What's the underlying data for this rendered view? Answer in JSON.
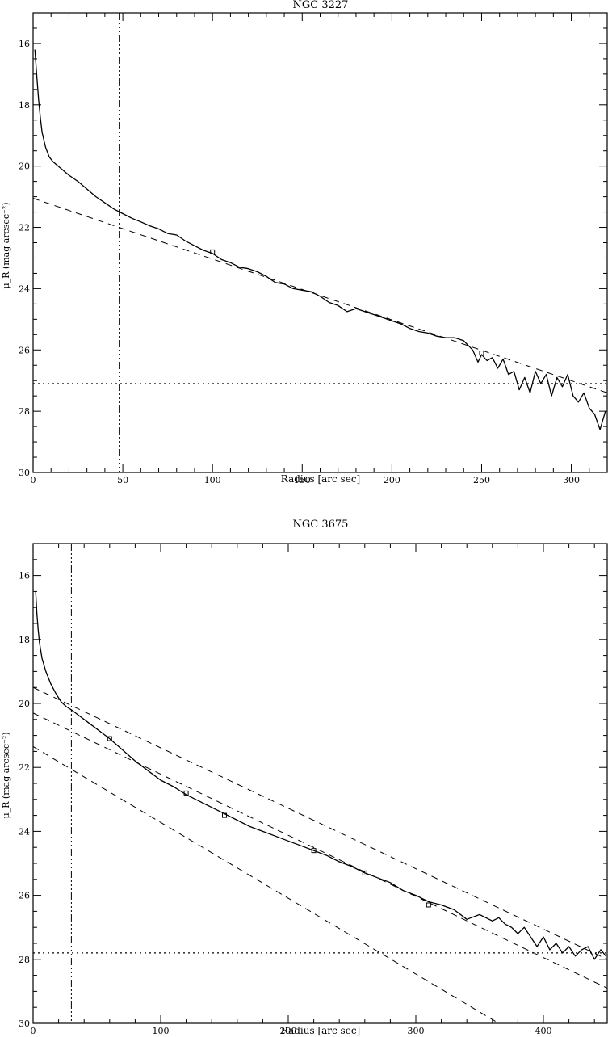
{
  "chart_data": [
    {
      "type": "line",
      "title": "NGC 3227",
      "xlabel": "Radius [arc sec]",
      "ylabel": "μ_R (mag arcsec⁻²)",
      "xlim": [
        0,
        320
      ],
      "ylim": [
        15,
        30
      ],
      "y_inverted": true,
      "xticks": [
        0,
        50,
        100,
        150,
        200,
        250,
        300
      ],
      "yticks": [
        16,
        18,
        20,
        22,
        24,
        26,
        28,
        30
      ],
      "series": [
        {
          "role": "profile",
          "style": "solid",
          "x": [
            1,
            2,
            3,
            4,
            5,
            7,
            9,
            11,
            15,
            20,
            25,
            30,
            35,
            40,
            45,
            50,
            55,
            60,
            65,
            70,
            75,
            80,
            85,
            90,
            95,
            100,
            105,
            110,
            115,
            120,
            125,
            130,
            135,
            140,
            145,
            150,
            155,
            160,
            165,
            170,
            175,
            180,
            185,
            190,
            195,
            200,
            205,
            210,
            215,
            220,
            225,
            230,
            235,
            240,
            245,
            248,
            250,
            253,
            256,
            259,
            262,
            265,
            268,
            271,
            274,
            277,
            280,
            283,
            286,
            289,
            292,
            295,
            298,
            301,
            304,
            307,
            310,
            313,
            316,
            319
          ],
          "y": [
            16.2,
            17.0,
            17.8,
            18.4,
            18.9,
            19.4,
            19.7,
            19.85,
            20.05,
            20.3,
            20.5,
            20.75,
            21.0,
            21.2,
            21.4,
            21.55,
            21.7,
            21.82,
            21.95,
            22.05,
            22.2,
            22.25,
            22.45,
            22.6,
            22.75,
            22.85,
            23.05,
            23.15,
            23.3,
            23.35,
            23.45,
            23.6,
            23.8,
            23.85,
            24.0,
            24.05,
            24.1,
            24.25,
            24.45,
            24.55,
            24.75,
            24.65,
            24.75,
            24.85,
            24.95,
            25.05,
            25.15,
            25.3,
            25.4,
            25.45,
            25.55,
            25.6,
            25.6,
            25.7,
            26.0,
            26.4,
            26.15,
            26.35,
            26.25,
            26.6,
            26.3,
            26.8,
            26.7,
            27.3,
            26.9,
            27.4,
            26.7,
            27.1,
            26.8,
            27.5,
            26.9,
            27.2,
            26.8,
            27.5,
            27.7,
            27.4,
            27.9,
            28.1,
            28.6,
            28.0
          ]
        },
        {
          "role": "fit",
          "style": "dashed",
          "x": [
            0,
            320
          ],
          "y": [
            21.05,
            27.4
          ]
        }
      ],
      "markers": {
        "x": [
          100,
          250
        ],
        "y": [
          22.8,
          26.1
        ]
      },
      "sky_level": 27.1,
      "core_radius": 48
    },
    {
      "type": "line",
      "title": "NGC 3675",
      "xlabel": "Radius [arc sec]",
      "ylabel": "μ_R (mag arcsec⁻²)",
      "xlim": [
        0,
        450
      ],
      "ylim": [
        15,
        30
      ],
      "y_inverted": true,
      "xticks": [
        0,
        100,
        200,
        300,
        400
      ],
      "yticks": [
        16,
        18,
        20,
        22,
        24,
        26,
        28,
        30
      ],
      "series": [
        {
          "role": "profile",
          "style": "solid",
          "x": [
            2,
            3,
            4,
            5,
            7,
            10,
            14,
            18,
            22,
            26,
            30,
            40,
            50,
            60,
            70,
            80,
            90,
            100,
            110,
            120,
            130,
            140,
            150,
            160,
            170,
            180,
            190,
            200,
            210,
            220,
            230,
            240,
            250,
            260,
            270,
            280,
            290,
            300,
            310,
            320,
            330,
            340,
            350,
            360,
            365,
            370,
            375,
            380,
            385,
            390,
            395,
            400,
            405,
            410,
            415,
            420,
            425,
            430,
            435,
            440,
            445,
            449
          ],
          "y": [
            16.5,
            17.2,
            17.7,
            18.1,
            18.6,
            19.0,
            19.4,
            19.7,
            19.95,
            20.1,
            20.2,
            20.5,
            20.8,
            21.1,
            21.45,
            21.8,
            22.1,
            22.4,
            22.6,
            22.85,
            23.05,
            23.25,
            23.45,
            23.65,
            23.85,
            24.0,
            24.15,
            24.3,
            24.45,
            24.6,
            24.75,
            24.95,
            25.1,
            25.3,
            25.45,
            25.6,
            25.85,
            26.0,
            26.2,
            26.3,
            26.45,
            26.75,
            26.6,
            26.8,
            26.7,
            26.9,
            27.0,
            27.2,
            27.0,
            27.3,
            27.6,
            27.3,
            27.7,
            27.5,
            27.8,
            27.6,
            27.9,
            27.7,
            27.6,
            28.0,
            27.7,
            27.9
          ]
        },
        {
          "role": "fit",
          "style": "dashed",
          "x": [
            0,
            450
          ],
          "y": [
            19.5,
            28.0
          ]
        },
        {
          "role": "fit",
          "style": "dashed",
          "x": [
            0,
            450
          ],
          "y": [
            20.3,
            28.9
          ]
        },
        {
          "role": "fit",
          "style": "dashed",
          "x": [
            0,
            365
          ],
          "y": [
            21.35,
            30.0
          ]
        }
      ],
      "markers": {
        "x": [
          60,
          120,
          150,
          220,
          260,
          310
        ],
        "y": [
          21.1,
          22.8,
          23.5,
          24.6,
          25.3,
          26.3
        ]
      },
      "sky_level": 27.8,
      "core_radius": 30
    }
  ]
}
